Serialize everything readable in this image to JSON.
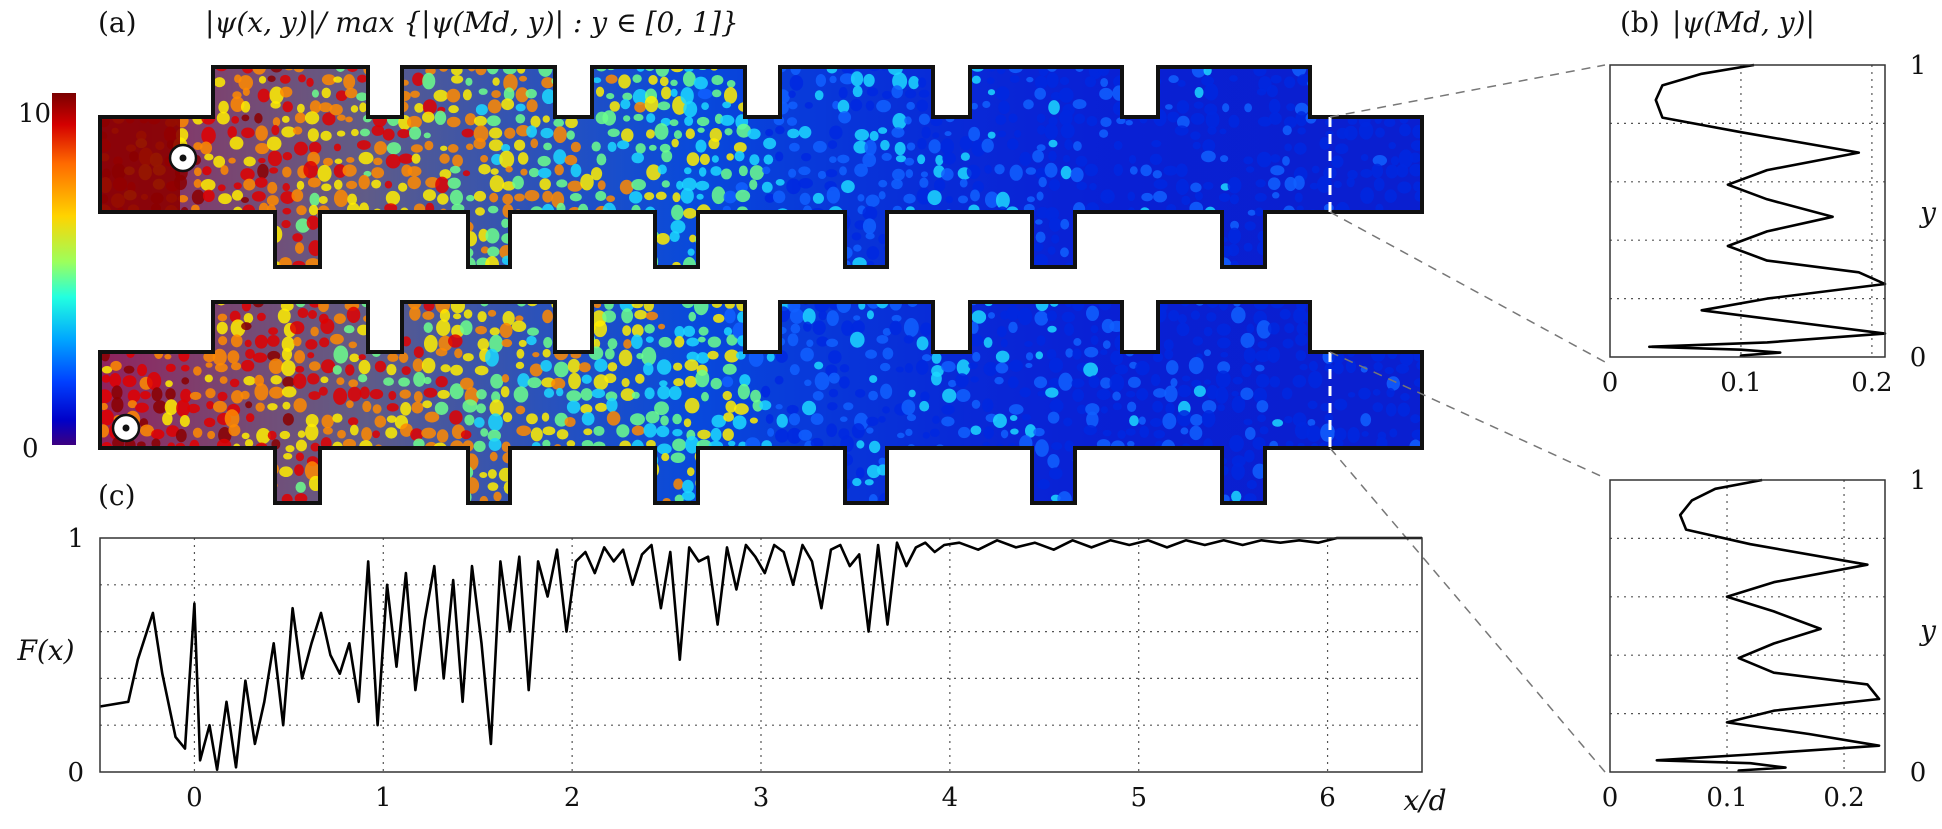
{
  "panel_a": {
    "label": "(a)",
    "title": "|ψ(x, y)|/ max {|ψ(Md, y)| : y ∈ [0, 1]}",
    "colorbar": {
      "max_label": "10",
      "min_label": "0",
      "colors": [
        "#7a0000",
        "#d40000",
        "#ff6a00",
        "#ffd400",
        "#9cff5c",
        "#22ffe0",
        "#00a6ff",
        "#0040ff",
        "#0000c8",
        "#3d0080"
      ]
    },
    "field_colors": [
      "#8b0000",
      "#e00000",
      "#ff8a00",
      "#ffee00",
      "#6cff8c",
      "#1cd8ff",
      "#1060ff",
      "#0028e0"
    ]
  },
  "panel_b": {
    "label": "(b)",
    "title": "|ψ(Md, y)|"
  },
  "panel_c": {
    "label": "(c)"
  },
  "chart_data": [
    {
      "type": "line",
      "title": "|ψ(Md, y)|",
      "ylabel": "y",
      "xlim": [
        0,
        0.21
      ],
      "ylim": [
        0,
        1
      ],
      "xticks": [
        "0",
        "0.1",
        "0.2"
      ],
      "yticks": [
        "0",
        "1"
      ],
      "series": [
        {
          "x": [
            0.11,
            0.07,
            0.04,
            0.035,
            0.04,
            0.1,
            0.19,
            0.12,
            0.09,
            0.12,
            0.17,
            0.12,
            0.09,
            0.12,
            0.19,
            0.21,
            0.12,
            0.07,
            0.14,
            0.21,
            0.12,
            0.03,
            0.1,
            0.13,
            0.1,
            0.1
          ],
          "y": [
            1.0,
            0.97,
            0.93,
            0.88,
            0.82,
            0.77,
            0.7,
            0.64,
            0.59,
            0.54,
            0.48,
            0.43,
            0.38,
            0.33,
            0.29,
            0.25,
            0.2,
            0.16,
            0.12,
            0.08,
            0.05,
            0.035,
            0.025,
            0.015,
            0.005,
            0.0
          ]
        }
      ]
    },
    {
      "type": "line",
      "ylabel": "y",
      "xlim": [
        0,
        0.235
      ],
      "ylim": [
        0,
        1
      ],
      "xticks": [
        "0",
        "0.1",
        "0.2"
      ],
      "yticks": [
        "0",
        "1"
      ],
      "series": [
        {
          "x": [
            0.13,
            0.09,
            0.07,
            0.06,
            0.065,
            0.12,
            0.22,
            0.14,
            0.1,
            0.14,
            0.18,
            0.14,
            0.11,
            0.14,
            0.22,
            0.23,
            0.14,
            0.1,
            0.17,
            0.23,
            0.12,
            0.04,
            0.12,
            0.15,
            0.11,
            0.11
          ],
          "y": [
            1.0,
            0.97,
            0.93,
            0.88,
            0.83,
            0.78,
            0.71,
            0.65,
            0.6,
            0.55,
            0.49,
            0.44,
            0.39,
            0.34,
            0.3,
            0.25,
            0.21,
            0.17,
            0.13,
            0.09,
            0.06,
            0.04,
            0.03,
            0.015,
            0.005,
            0.0
          ]
        }
      ]
    },
    {
      "type": "line",
      "ylabel": "F(x)",
      "xlabel": "x/d",
      "xlim": [
        -0.5,
        6.5
      ],
      "ylim": [
        0,
        1
      ],
      "xticks": [
        "0",
        "1",
        "2",
        "3",
        "4",
        "5",
        "6"
      ],
      "yticks": [
        "0",
        "1"
      ],
      "series": [
        {
          "x": [
            -0.5,
            -0.35,
            -0.3,
            -0.22,
            -0.17,
            -0.1,
            -0.05,
            0.0,
            0.03,
            0.08,
            0.12,
            0.17,
            0.22,
            0.27,
            0.32,
            0.37,
            0.42,
            0.47,
            0.52,
            0.57,
            0.62,
            0.67,
            0.72,
            0.77,
            0.82,
            0.87,
            0.92,
            0.97,
            1.02,
            1.07,
            1.12,
            1.17,
            1.22,
            1.27,
            1.32,
            1.37,
            1.42,
            1.47,
            1.52,
            1.57,
            1.62,
            1.67,
            1.72,
            1.77,
            1.82,
            1.87,
            1.92,
            1.97,
            2.02,
            2.07,
            2.12,
            2.17,
            2.22,
            2.27,
            2.32,
            2.37,
            2.42,
            2.47,
            2.52,
            2.57,
            2.62,
            2.67,
            2.72,
            2.77,
            2.82,
            2.87,
            2.92,
            2.97,
            3.02,
            3.07,
            3.12,
            3.17,
            3.22,
            3.27,
            3.32,
            3.37,
            3.42,
            3.47,
            3.52,
            3.57,
            3.62,
            3.67,
            3.72,
            3.77,
            3.82,
            3.87,
            3.92,
            3.97,
            4.05,
            4.15,
            4.25,
            4.35,
            4.45,
            4.55,
            4.65,
            4.75,
            4.85,
            4.95,
            5.05,
            5.15,
            5.25,
            5.35,
            5.45,
            5.55,
            5.65,
            5.75,
            5.85,
            5.95,
            6.05,
            6.25,
            6.5
          ],
          "y": [
            0.28,
            0.3,
            0.48,
            0.68,
            0.42,
            0.15,
            0.1,
            0.72,
            0.05,
            0.2,
            0.01,
            0.3,
            0.02,
            0.39,
            0.12,
            0.3,
            0.55,
            0.2,
            0.7,
            0.4,
            0.55,
            0.68,
            0.5,
            0.42,
            0.55,
            0.3,
            0.9,
            0.2,
            0.8,
            0.45,
            0.85,
            0.35,
            0.65,
            0.88,
            0.4,
            0.82,
            0.3,
            0.88,
            0.55,
            0.12,
            0.9,
            0.6,
            0.92,
            0.35,
            0.9,
            0.75,
            0.95,
            0.6,
            0.9,
            0.94,
            0.85,
            0.96,
            0.9,
            0.95,
            0.8,
            0.93,
            0.97,
            0.7,
            0.94,
            0.48,
            0.96,
            0.9,
            0.92,
            0.63,
            0.96,
            0.78,
            0.97,
            0.92,
            0.85,
            0.97,
            0.94,
            0.8,
            0.97,
            0.9,
            0.7,
            0.95,
            0.97,
            0.88,
            0.93,
            0.6,
            0.97,
            0.63,
            0.98,
            0.88,
            0.96,
            0.98,
            0.94,
            0.97,
            0.98,
            0.95,
            0.99,
            0.96,
            0.98,
            0.95,
            0.99,
            0.96,
            0.99,
            0.97,
            0.99,
            0.96,
            0.99,
            0.97,
            0.99,
            0.97,
            0.99,
            0.98,
            0.99,
            0.98,
            1.0,
            1.0,
            1.0
          ]
        }
      ]
    }
  ]
}
